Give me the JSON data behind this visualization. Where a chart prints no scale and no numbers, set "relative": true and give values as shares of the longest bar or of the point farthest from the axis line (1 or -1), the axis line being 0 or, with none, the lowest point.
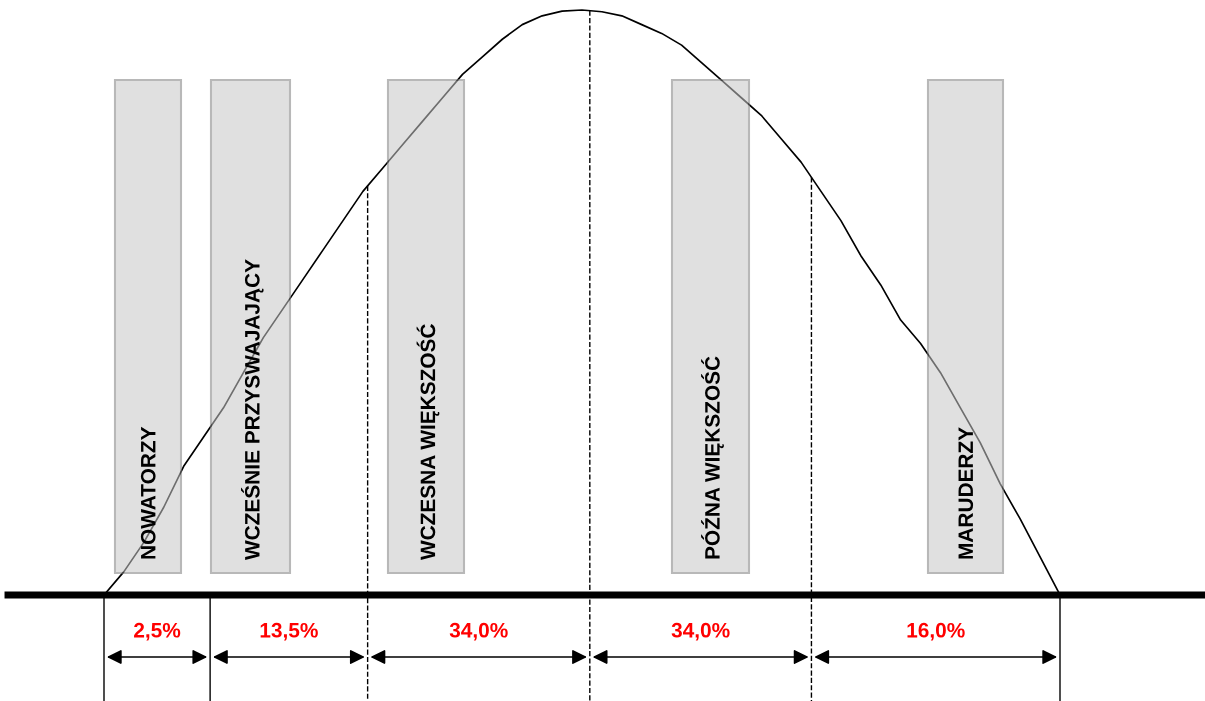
{
  "chart_data": [
    {
      "type": "line",
      "relative": true,
      "categories": [
        null,
        null,
        null,
        null,
        null,
        null,
        null,
        null,
        null,
        null,
        null,
        null,
        null,
        null,
        null,
        null,
        null,
        null,
        null,
        null,
        null,
        null,
        null,
        null,
        null,
        null,
        null,
        null,
        null,
        null,
        null,
        null,
        null,
        null,
        null,
        null,
        null,
        null,
        null,
        null,
        null,
        null,
        null,
        null,
        null,
        null,
        null,
        null,
        null
      ],
      "series": [
        {
          "color": "#000000",
          "values": [
            0,
            0.04,
            0.09,
            0.15,
            0.22,
            0.27,
            0.32,
            0.38,
            0.44,
            0.49,
            0.54,
            0.59,
            0.64,
            0.69,
            0.73,
            0.77,
            0.81,
            0.85,
            0.89,
            0.92,
            0.95,
            0.975,
            0.99,
            0.998,
            1.0,
            0.997,
            0.99,
            0.975,
            0.96,
            0.94,
            0.91,
            0.88,
            0.85,
            0.82,
            0.78,
            0.74,
            0.69,
            0.64,
            0.58,
            0.53,
            0.47,
            0.43,
            0.38,
            0.32,
            0.26,
            0.19,
            0.13,
            0.065,
            0
          ]
        }
      ]
    },
    {
      "type": "other",
      "categories": [
        "NOWATORZY",
        "WCZEŚNIE PRZYSWAJAJĄCY",
        "WCZESNA WIĘKSZOŚĆ",
        "PÓŹNA WIĘKSZOŚĆ",
        "MARUDERZY"
      ],
      "values": [
        2.5,
        13.5,
        34.0,
        34.0,
        16.0
      ],
      "value_labels": [
        "2,5%",
        "13,5%",
        "34,0%",
        "34,0%",
        "16,0%"
      ]
    }
  ]
}
